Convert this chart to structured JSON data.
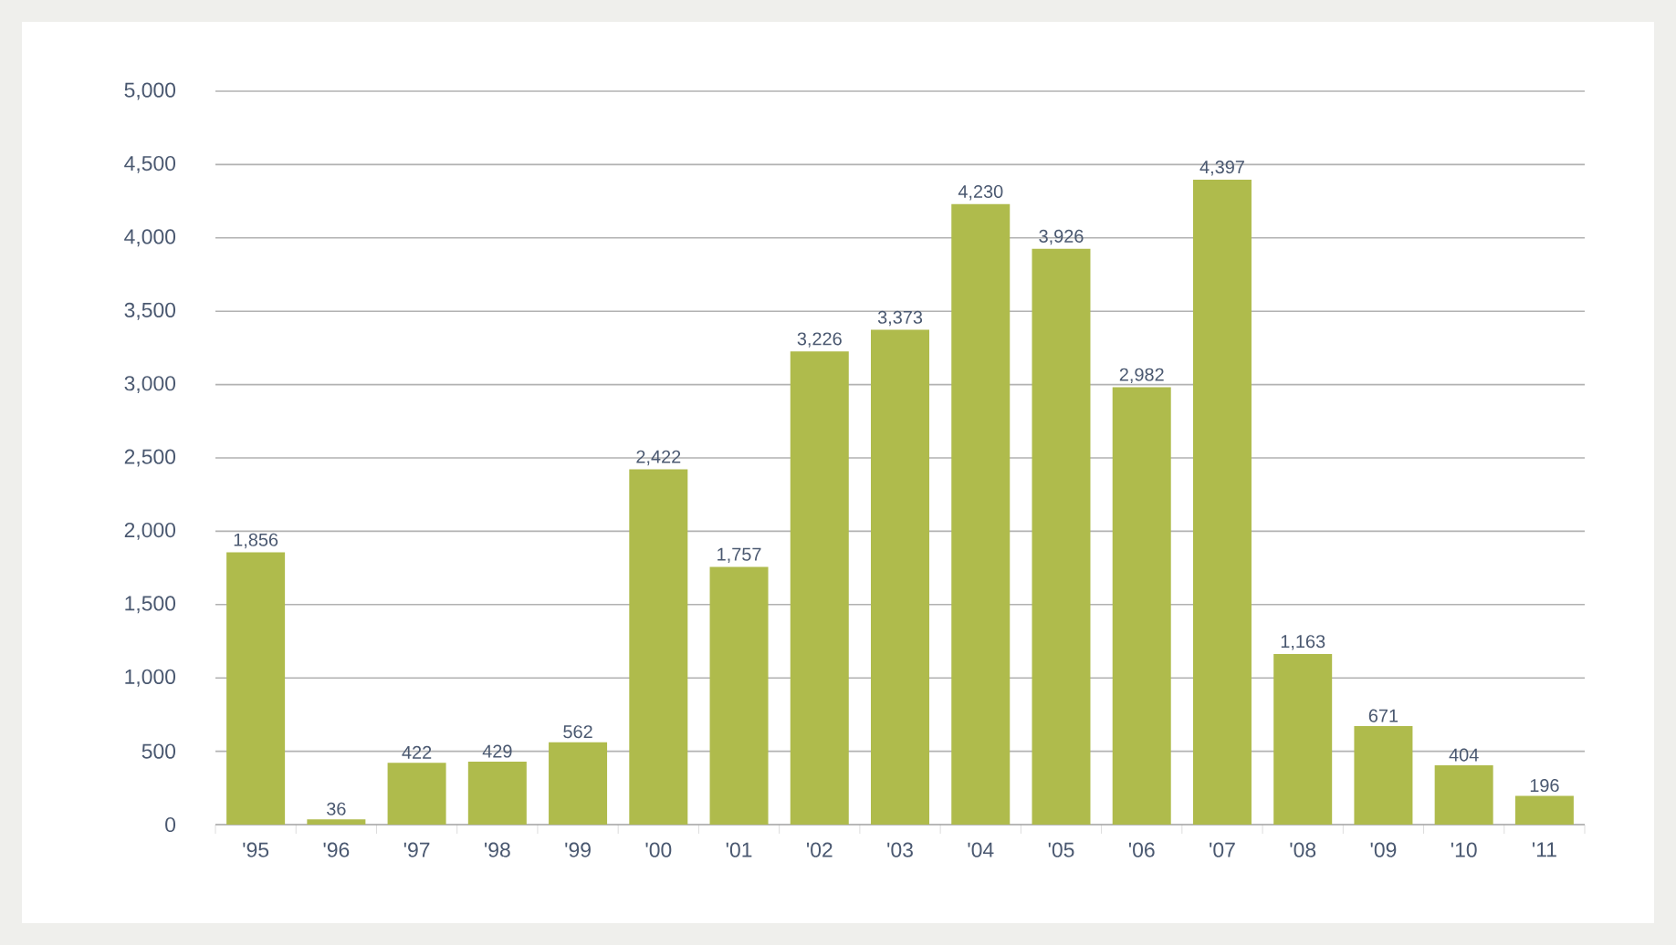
{
  "chart_data": {
    "type": "bar",
    "categories": [
      "'95",
      "'96",
      "'97",
      "'98",
      "'99",
      "'00",
      "'01",
      "'02",
      "'03",
      "'04",
      "'05",
      "'06",
      "'07",
      "'08",
      "'09",
      "'10",
      "'11"
    ],
    "values": [
      1856,
      36,
      422,
      429,
      562,
      2422,
      1757,
      3226,
      3373,
      4230,
      3926,
      2982,
      4397,
      1163,
      671,
      404,
      196
    ],
    "value_labels": [
      "1,856",
      "36",
      "422",
      "429",
      "562",
      "2,422",
      "1,757",
      "3,226",
      "3,373",
      "4,230",
      "3,926",
      "2,982",
      "4,397",
      "1,163",
      "671",
      "404",
      "196"
    ],
    "color": "#afbb4c",
    "ylim": [
      0,
      5000
    ],
    "yticks": [
      {
        "value": 0,
        "label": "0"
      },
      {
        "value": 500,
        "label": "500"
      },
      {
        "value": 1000,
        "label": "1,000"
      },
      {
        "value": 1500,
        "label": "1,500"
      },
      {
        "value": 2000,
        "label": "2,000"
      },
      {
        "value": 2500,
        "label": "2,500"
      },
      {
        "value": 3000,
        "label": "3,000"
      },
      {
        "value": 3500,
        "label": "3,500"
      },
      {
        "value": 4000,
        "label": "4,000"
      },
      {
        "value": 4500,
        "label": "4,500"
      },
      {
        "value": 5000,
        "label": "5,000"
      }
    ],
    "grid": "y"
  }
}
